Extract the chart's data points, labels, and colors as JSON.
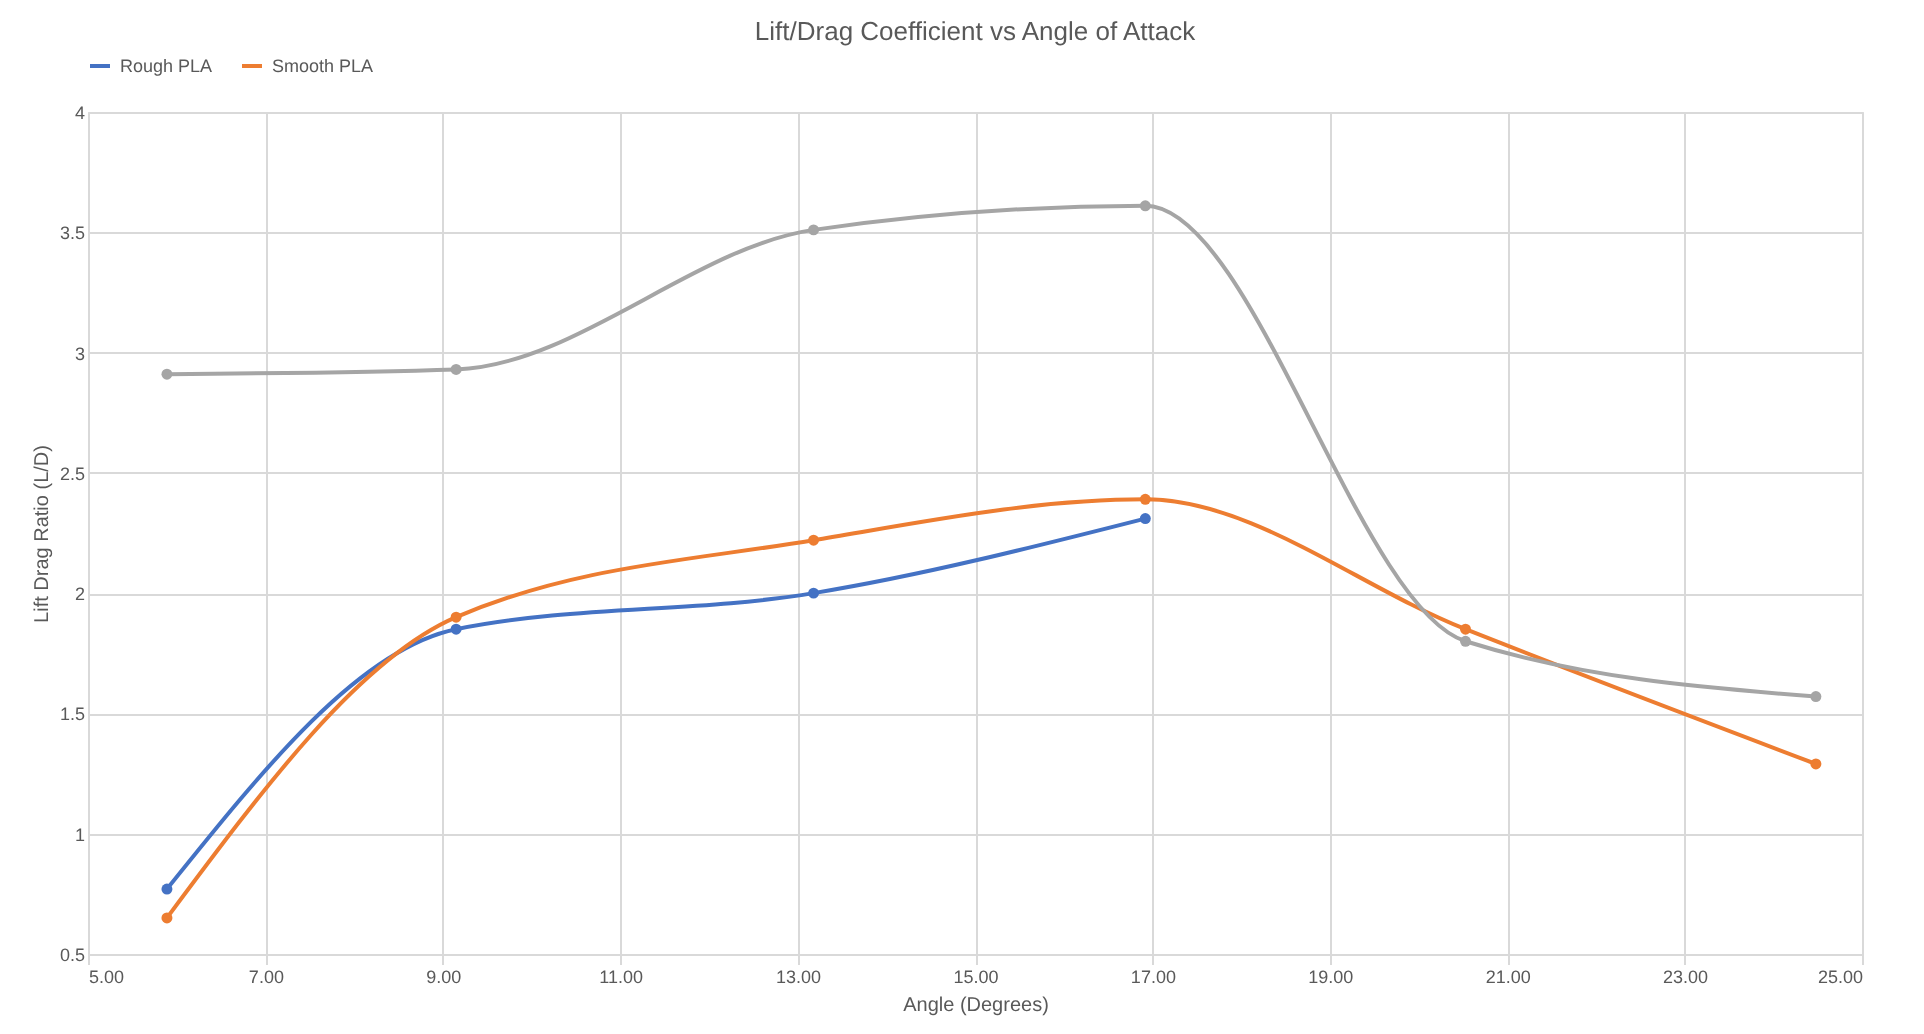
{
  "chart_data": {
    "type": "line",
    "title": "Lift/Drag Coefficient vs Angle of Attack",
    "xlabel": "Angle (Degrees)",
    "ylabel": "Lift Drag Ratio (L/D)",
    "x": [
      5.89,
      9.15,
      13.18,
      16.92,
      20.53,
      24.48
    ],
    "series": [
      {
        "name": "Rough PLA",
        "color": "#4472c4",
        "values": [
          0.77,
          1.85,
          2.0,
          2.31,
          null,
          null
        ]
      },
      {
        "name": "Smooth PLA",
        "color": "#ed7d31",
        "values": [
          0.65,
          1.9,
          2.22,
          2.39,
          1.85,
          1.29
        ]
      },
      {
        "color": "#a5a5a5",
        "values": [
          2.91,
          2.93,
          3.51,
          3.61,
          1.8,
          1.57
        ]
      }
    ],
    "xlim": [
      5,
      25
    ],
    "xticks": [
      {
        "value": 5,
        "label": "5.00"
      },
      {
        "value": 7,
        "label": "7.00"
      },
      {
        "value": 9,
        "label": "9.00"
      },
      {
        "value": 11,
        "label": "11.00"
      },
      {
        "value": 13,
        "label": "13.00"
      },
      {
        "value": 15,
        "label": "15.00"
      },
      {
        "value": 17,
        "label": "17.00"
      },
      {
        "value": 19,
        "label": "19.00"
      },
      {
        "value": 21,
        "label": "21.00"
      },
      {
        "value": 23,
        "label": "23.00"
      },
      {
        "value": 25,
        "label": "25.00"
      }
    ],
    "ylim": [
      0.5,
      4
    ],
    "yticks": [
      0.5,
      1,
      1.5,
      2,
      2.5,
      3,
      3.5,
      4
    ],
    "grid": true,
    "legend": "top",
    "marker": "circle",
    "line_style": "solid"
  }
}
